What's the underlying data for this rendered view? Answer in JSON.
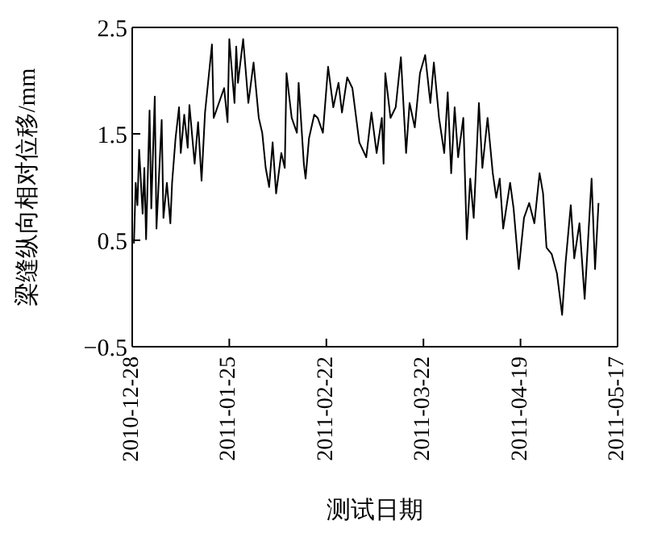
{
  "chart_data": {
    "type": "line",
    "xlabel": "测试日期",
    "ylabel": "梁缝纵向相对位移/mm",
    "xlim": [
      "2010-12-28",
      "2011-05-17"
    ],
    "xticks": [
      "2010-12-28",
      "2011-01-25",
      "2011-02-22",
      "2011-03-22",
      "2011-04-19",
      "2011-05-17"
    ],
    "ylim": [
      -0.5,
      2.5
    ],
    "yticks": [
      -0.5,
      0.5,
      1.5,
      2.5
    ],
    "grid": false,
    "legend": false,
    "marker": "none",
    "line_style": "solid",
    "x": [
      "2010-12-28T12:00",
      "2010-12-29",
      "2010-12-29T12:00",
      "2010-12-30",
      "2010-12-31",
      "2010-12-31T12:00",
      "2011-01-01",
      "2011-01-02",
      "2011-01-02T12:00",
      "2011-01-03T12:00",
      "2011-01-04",
      "2011-01-05T12:00",
      "2011-01-06",
      "2011-01-07",
      "2011-01-08",
      "2011-01-08T12:00",
      "2011-01-09T12:00",
      "2011-01-10T12:00",
      "2011-01-11",
      "2011-01-12",
      "2011-01-13",
      "2011-01-13T12:00",
      "2011-01-15",
      "2011-01-16",
      "2011-01-17",
      "2011-01-18",
      "2011-01-20",
      "2011-01-20T12:00",
      "2011-01-22",
      "2011-01-23T12:00",
      "2011-01-24T12:00",
      "2011-01-25",
      "2011-01-26T12:00",
      "2011-01-27",
      "2011-01-27T12:00",
      "2011-01-29",
      "2011-01-30T12:00",
      "2011-02-01",
      "2011-02-02T12:00",
      "2011-02-03T12:00",
      "2011-02-04T12:00",
      "2011-02-05T12:00",
      "2011-02-06T12:00",
      "2011-02-07T12:00",
      "2011-02-09",
      "2011-02-10",
      "2011-02-10T12:00",
      "2011-02-12",
      "2011-02-13T12:00",
      "2011-02-14",
      "2011-02-15T12:00",
      "2011-02-16",
      "2011-02-17",
      "2011-02-18T12:00",
      "2011-02-19T12:00",
      "2011-02-21",
      "2011-02-22T12:00",
      "2011-02-24",
      "2011-02-25T12:00",
      "2011-02-26T12:00",
      "2011-02-28",
      "2011-03-01T12:00",
      "2011-03-03T12:00",
      "2011-03-05T12:00",
      "2011-03-07",
      "2011-03-08T12:00",
      "2011-03-10",
      "2011-03-10T12:00",
      "2011-03-11",
      "2011-03-12T12:00",
      "2011-03-14",
      "2011-03-15T12:00",
      "2011-03-17",
      "2011-03-18",
      "2011-03-19T12:00",
      "2011-03-21",
      "2011-03-22T12:00",
      "2011-03-24",
      "2011-03-25",
      "2011-03-26T12:00",
      "2011-03-28",
      "2011-03-29",
      "2011-03-30",
      "2011-03-31",
      "2011-04-01",
      "2011-04-02T12:00",
      "2011-04-03T12:00",
      "2011-04-04T12:00",
      "2011-04-05T12:00",
      "2011-04-07",
      "2011-04-08",
      "2011-04-09T12:00",
      "2011-04-11",
      "2011-04-12",
      "2011-04-13",
      "2011-04-14",
      "2011-04-16",
      "2011-04-17",
      "2011-04-18T12:00",
      "2011-04-20",
      "2011-04-21T12:00",
      "2011-04-23",
      "2011-04-24T12:00",
      "2011-04-25T12:00",
      "2011-04-26T12:00",
      "2011-04-28",
      "2011-04-29T12:00",
      "2011-05-01",
      "2011-05-02",
      "2011-05-03T12:00",
      "2011-05-04T12:00",
      "2011-05-06",
      "2011-05-07T12:00",
      "2011-05-08T12:00",
      "2011-05-09T12:00",
      "2011-05-10T12:00",
      "2011-05-11T12:00"
    ],
    "series": [
      {
        "color": "#000000",
        "values": [
          0.47,
          1.04,
          0.83,
          1.35,
          0.75,
          1.18,
          0.51,
          1.72,
          0.8,
          1.85,
          0.61,
          1.63,
          0.71,
          1.04,
          0.66,
          1.04,
          1.46,
          1.75,
          1.32,
          1.68,
          1.37,
          1.77,
          1.22,
          1.61,
          1.06,
          1.7,
          2.34,
          1.65,
          1.79,
          1.93,
          1.61,
          2.39,
          1.79,
          2.32,
          1.98,
          2.39,
          1.79,
          2.17,
          1.65,
          1.51,
          1.18,
          1.0,
          1.42,
          0.94,
          1.32,
          1.18,
          2.07,
          1.65,
          1.51,
          1.98,
          1.22,
          1.08,
          1.46,
          1.68,
          1.65,
          1.51,
          2.13,
          1.75,
          1.98,
          1.7,
          2.03,
          1.93,
          1.42,
          1.28,
          1.7,
          1.32,
          1.65,
          1.22,
          2.07,
          1.65,
          1.75,
          2.22,
          1.32,
          1.79,
          1.56,
          2.07,
          2.24,
          1.79,
          2.17,
          1.65,
          1.32,
          1.89,
          1.13,
          1.75,
          1.28,
          1.65,
          0.51,
          1.08,
          0.71,
          1.79,
          1.18,
          1.65,
          1.13,
          0.9,
          1.08,
          0.61,
          1.04,
          0.8,
          0.23,
          0.71,
          0.85,
          0.66,
          1.13,
          0.94,
          0.43,
          0.37,
          0.19,
          -0.2,
          0.29,
          0.83,
          0.33,
          0.66,
          -0.05,
          0.51,
          1.08,
          0.23,
          0.85
        ]
      }
    ]
  }
}
